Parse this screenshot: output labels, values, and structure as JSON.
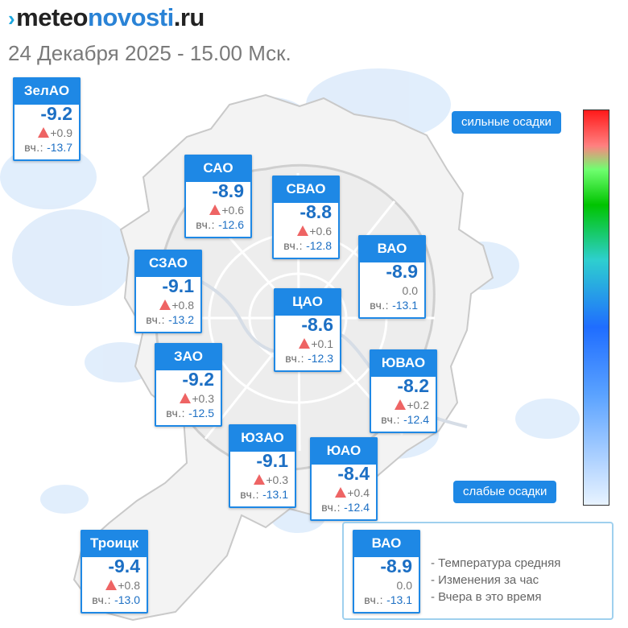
{
  "header": {
    "logo": {
      "mark": "›",
      "part1": "meteo",
      "part2": "novosti",
      "part3": ".ru"
    },
    "dateline": "24 Декабря 2025 - 15.00 Мск."
  },
  "districts": [
    {
      "id": "zelao",
      "name": "ЗелАО",
      "temp": "-9.2",
      "change": "+0.9",
      "trend": "up",
      "yesterday_label": "вч.:",
      "yesterday": "-13.7"
    },
    {
      "id": "sao",
      "name": "САО",
      "temp": "-8.9",
      "change": "+0.6",
      "trend": "up",
      "yesterday_label": "вч.:",
      "yesterday": "-12.6"
    },
    {
      "id": "svao",
      "name": "СВАО",
      "temp": "-8.8",
      "change": "+0.6",
      "trend": "up",
      "yesterday_label": "вч.:",
      "yesterday": "-12.8"
    },
    {
      "id": "vao",
      "name": "ВАО",
      "temp": "-8.9",
      "change": "0.0",
      "trend": "none",
      "yesterday_label": "вч.:",
      "yesterday": "-13.1"
    },
    {
      "id": "szao",
      "name": "СЗАО",
      "temp": "-9.1",
      "change": "+0.8",
      "trend": "up",
      "yesterday_label": "вч.:",
      "yesterday": "-13.2"
    },
    {
      "id": "tsao",
      "name": "ЦАО",
      "temp": "-8.6",
      "change": "+0.1",
      "trend": "up",
      "yesterday_label": "вч.:",
      "yesterday": "-12.3"
    },
    {
      "id": "zao",
      "name": "ЗАО",
      "temp": "-9.2",
      "change": "+0.3",
      "trend": "up",
      "yesterday_label": "вч.:",
      "yesterday": "-12.5"
    },
    {
      "id": "yuvao",
      "name": "ЮВАО",
      "temp": "-8.2",
      "change": "+0.2",
      "trend": "up",
      "yesterday_label": "вч.:",
      "yesterday": "-12.4"
    },
    {
      "id": "yuzao",
      "name": "ЮЗАО",
      "temp": "-9.1",
      "change": "+0.3",
      "trend": "up",
      "yesterday_label": "вч.:",
      "yesterday": "-13.1"
    },
    {
      "id": "yuao",
      "name": "ЮАО",
      "temp": "-8.4",
      "change": "+0.4",
      "trend": "up",
      "yesterday_label": "вч.:",
      "yesterday": "-12.4"
    },
    {
      "id": "troitsk",
      "name": "Троицк",
      "temp": "-9.4",
      "change": "+0.8",
      "trend": "up",
      "yesterday_label": "вч.:",
      "yesterday": "-13.0"
    }
  ],
  "precip_scale": {
    "top_label": "сильные осадки",
    "bottom_label": "слабые осадки",
    "colors": [
      "#ff1a1a",
      "#ff8080",
      "#70ff70",
      "#00c400",
      "#2ecfcf",
      "#1f6dff",
      "#5aa2ff",
      "#b6d6ff",
      "#e8f3ff"
    ]
  },
  "legend": {
    "sample": {
      "name": "ВАО",
      "temp": "-8.9",
      "change": "0.0",
      "trend": "none",
      "yesterday_label": "вч.:",
      "yesterday": "-13.1"
    },
    "items": [
      "- Температура средняя",
      "- Изменения за час",
      "- Вчера в это время"
    ]
  },
  "colors": {
    "accent": "#1e88e5",
    "temperature": "#1c6fc4",
    "rise": "#ee6464",
    "precip_light": "#dcebfb"
  }
}
